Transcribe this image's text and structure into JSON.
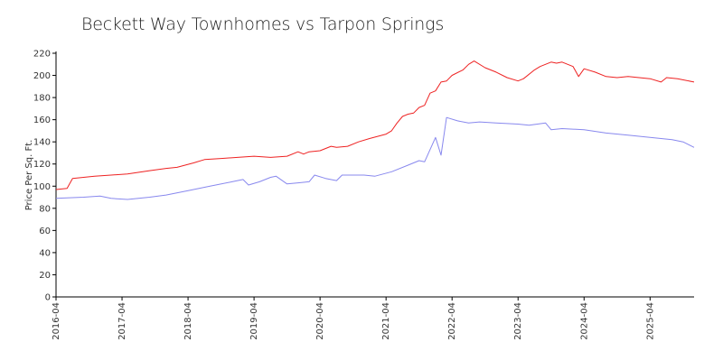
{
  "chart_data": {
    "type": "line",
    "title": "Beckett Way Townhomes vs Tarpon Springs",
    "xlabel": "",
    "ylabel": "Price Per Sq. Ft.",
    "ylim": [
      0,
      220
    ],
    "yticks": [
      0,
      20,
      40,
      60,
      80,
      100,
      120,
      140,
      160,
      180,
      200,
      220
    ],
    "xticks": [
      "2016-04",
      "2017-04",
      "2018-04",
      "2019-04",
      "2020-04",
      "2021-04",
      "2022-04",
      "2023-04",
      "2024-04",
      "2025-04"
    ],
    "x_range": [
      "2016-04",
      "2025-12"
    ],
    "grid": false,
    "legend": "none",
    "series": [
      {
        "color": "#ee2222",
        "points": [
          [
            "2016-04",
            97
          ],
          [
            "2016-06",
            98
          ],
          [
            "2016-07",
            107
          ],
          [
            "2016-09",
            108
          ],
          [
            "2016-11",
            109
          ],
          [
            "2017-02",
            110
          ],
          [
            "2017-05",
            111
          ],
          [
            "2017-09",
            114
          ],
          [
            "2017-12",
            116
          ],
          [
            "2018-02",
            117
          ],
          [
            "2018-05",
            121
          ],
          [
            "2018-07",
            124
          ],
          [
            "2018-10",
            125
          ],
          [
            "2019-01",
            126
          ],
          [
            "2019-04",
            127
          ],
          [
            "2019-07",
            126
          ],
          [
            "2019-10",
            127
          ],
          [
            "2019-12",
            131
          ],
          [
            "2020-01",
            129
          ],
          [
            "2020-02",
            131
          ],
          [
            "2020-04",
            132
          ],
          [
            "2020-06",
            136
          ],
          [
            "2020-07",
            135
          ],
          [
            "2020-09",
            136
          ],
          [
            "2020-11",
            140
          ],
          [
            "2021-01",
            143
          ],
          [
            "2021-04",
            147
          ],
          [
            "2021-05",
            150
          ],
          [
            "2021-06",
            157
          ],
          [
            "2021-07",
            163
          ],
          [
            "2021-08",
            165
          ],
          [
            "2021-09",
            166
          ],
          [
            "2021-10",
            171
          ],
          [
            "2021-11",
            173
          ],
          [
            "2021-12",
            184
          ],
          [
            "2022-01",
            186
          ],
          [
            "2022-02",
            194
          ],
          [
            "2022-03",
            195
          ],
          [
            "2022-04",
            200
          ],
          [
            "2022-06",
            205
          ],
          [
            "2022-07",
            210
          ],
          [
            "2022-08",
            213
          ],
          [
            "2022-10",
            207
          ],
          [
            "2022-12",
            203
          ],
          [
            "2023-02",
            198
          ],
          [
            "2023-04",
            195
          ],
          [
            "2023-05",
            197
          ],
          [
            "2023-07",
            205
          ],
          [
            "2023-08",
            208
          ],
          [
            "2023-10",
            212
          ],
          [
            "2023-11",
            211
          ],
          [
            "2023-12",
            212
          ],
          [
            "2024-02",
            208
          ],
          [
            "2024-03",
            199
          ],
          [
            "2024-04",
            206
          ],
          [
            "2024-06",
            203
          ],
          [
            "2024-08",
            199
          ],
          [
            "2024-10",
            198
          ],
          [
            "2024-12",
            199
          ],
          [
            "2025-02",
            198
          ],
          [
            "2025-04",
            197
          ],
          [
            "2025-06",
            194
          ],
          [
            "2025-07",
            198
          ],
          [
            "2025-09",
            197
          ],
          [
            "2025-12",
            194
          ]
        ]
      },
      {
        "color": "#8888ee",
        "points": [
          [
            "2016-04",
            89
          ],
          [
            "2016-09",
            90
          ],
          [
            "2016-12",
            91
          ],
          [
            "2017-02",
            89
          ],
          [
            "2017-05",
            88
          ],
          [
            "2017-09",
            90
          ],
          [
            "2017-12",
            92
          ],
          [
            "2018-04",
            96
          ],
          [
            "2018-08",
            100
          ],
          [
            "2018-12",
            104
          ],
          [
            "2019-02",
            106
          ],
          [
            "2019-03",
            101
          ],
          [
            "2019-05",
            104
          ],
          [
            "2019-07",
            108
          ],
          [
            "2019-08",
            109
          ],
          [
            "2019-10",
            102
          ],
          [
            "2019-12",
            103
          ],
          [
            "2020-02",
            104
          ],
          [
            "2020-03",
            110
          ],
          [
            "2020-05",
            107
          ],
          [
            "2020-07",
            105
          ],
          [
            "2020-08",
            110
          ],
          [
            "2020-10",
            110
          ],
          [
            "2020-12",
            110
          ],
          [
            "2021-02",
            109
          ],
          [
            "2021-05",
            113
          ],
          [
            "2021-08",
            119
          ],
          [
            "2021-10",
            123
          ],
          [
            "2021-11",
            122
          ],
          [
            "2022-01",
            144
          ],
          [
            "2022-02",
            128
          ],
          [
            "2022-03",
            162
          ],
          [
            "2022-05",
            159
          ],
          [
            "2022-07",
            157
          ],
          [
            "2022-09",
            158
          ],
          [
            "2022-12",
            157
          ],
          [
            "2023-04",
            156
          ],
          [
            "2023-06",
            155
          ],
          [
            "2023-09",
            157
          ],
          [
            "2023-10",
            151
          ],
          [
            "2023-12",
            152
          ],
          [
            "2024-04",
            151
          ],
          [
            "2024-08",
            148
          ],
          [
            "2024-12",
            146
          ],
          [
            "2025-04",
            144
          ],
          [
            "2025-08",
            142
          ],
          [
            "2025-10",
            140
          ],
          [
            "2025-12",
            135
          ]
        ]
      }
    ]
  }
}
